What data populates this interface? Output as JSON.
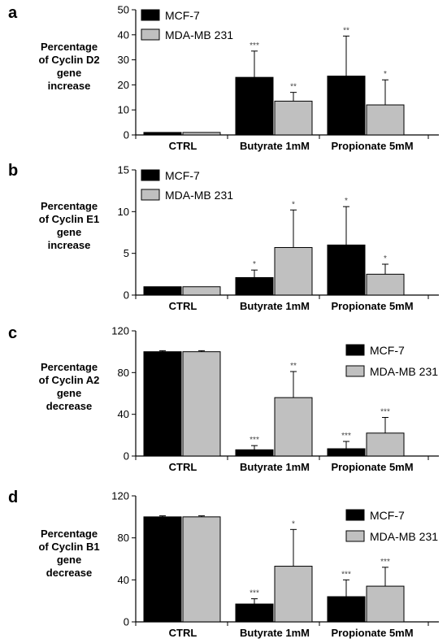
{
  "chart_data": [
    {
      "type": "bar",
      "panel": "a",
      "ylabel": [
        "Percentage",
        "of Cyclin D2",
        "gene",
        "increase"
      ],
      "categories": [
        "CTRL",
        "Butyrate 1mM",
        "Propionate 5mM"
      ],
      "ylim": [
        0,
        50
      ],
      "yticks": [
        0,
        10,
        20,
        30,
        40,
        50
      ],
      "legend_position": "top-left",
      "series": [
        {
          "name": "MCF-7",
          "color": "#000000",
          "values": [
            1,
            23,
            23.5
          ],
          "errors": [
            0,
            10.5,
            16
          ],
          "sig": [
            "",
            "***",
            "**"
          ]
        },
        {
          "name": "MDA-MB 231",
          "color": "#c0c0c0",
          "values": [
            1,
            13.5,
            12
          ],
          "errors": [
            0,
            3.5,
            10
          ],
          "sig": [
            "",
            "**",
            "*"
          ]
        }
      ]
    },
    {
      "type": "bar",
      "panel": "b",
      "ylabel": [
        "Percentage",
        "of Cyclin E1",
        "gene",
        "increase"
      ],
      "categories": [
        "CTRL",
        "Butyrate 1mM",
        "Propionate 5mM"
      ],
      "ylim": [
        0,
        15
      ],
      "yticks": [
        0,
        5,
        10,
        15
      ],
      "legend_position": "top-left",
      "series": [
        {
          "name": "MCF-7",
          "color": "#000000",
          "values": [
            1,
            2.1,
            6
          ],
          "errors": [
            0,
            0.9,
            4.6
          ],
          "sig": [
            "",
            "*",
            "*"
          ]
        },
        {
          "name": "MDA-MB 231",
          "color": "#c0c0c0",
          "values": [
            1,
            5.7,
            2.5
          ],
          "errors": [
            0,
            4.5,
            1.2
          ],
          "sig": [
            "",
            "*",
            "*"
          ]
        }
      ]
    },
    {
      "type": "bar",
      "panel": "c",
      "ylabel": [
        "Percentage",
        "of Cyclin A2",
        "gene",
        "decrease"
      ],
      "categories": [
        "CTRL",
        "Butyrate 1mM",
        "Propionate 5mM"
      ],
      "ylim": [
        0,
        120
      ],
      "yticks": [
        0,
        40,
        80,
        120
      ],
      "legend_position": "right",
      "series": [
        {
          "name": "MCF-7",
          "color": "#000000",
          "values": [
            100,
            6,
            7
          ],
          "errors": [
            1,
            4,
            7
          ],
          "sig": [
            "",
            "***",
            "***"
          ]
        },
        {
          "name": "MDA-MB 231",
          "color": "#c0c0c0",
          "values": [
            100,
            56,
            22
          ],
          "errors": [
            1,
            25,
            15
          ],
          "sig": [
            "",
            "**",
            "***"
          ]
        }
      ]
    },
    {
      "type": "bar",
      "panel": "d",
      "ylabel": [
        "Percentage",
        "of Cyclin B1",
        "gene",
        "decrease"
      ],
      "categories": [
        "CTRL",
        "Butyrate 1mM",
        "Propionate 5mM"
      ],
      "ylim": [
        0,
        120
      ],
      "yticks": [
        0,
        40,
        80,
        120
      ],
      "legend_position": "right",
      "series": [
        {
          "name": "MCF-7",
          "color": "#000000",
          "values": [
            100,
            17,
            24
          ],
          "errors": [
            1,
            5,
            16
          ],
          "sig": [
            "",
            "***",
            "***"
          ]
        },
        {
          "name": "MDA-MB 231",
          "color": "#c0c0c0",
          "values": [
            100,
            53,
            34
          ],
          "errors": [
            1,
            35,
            18
          ],
          "sig": [
            "",
            "*",
            "***"
          ]
        }
      ]
    }
  ]
}
